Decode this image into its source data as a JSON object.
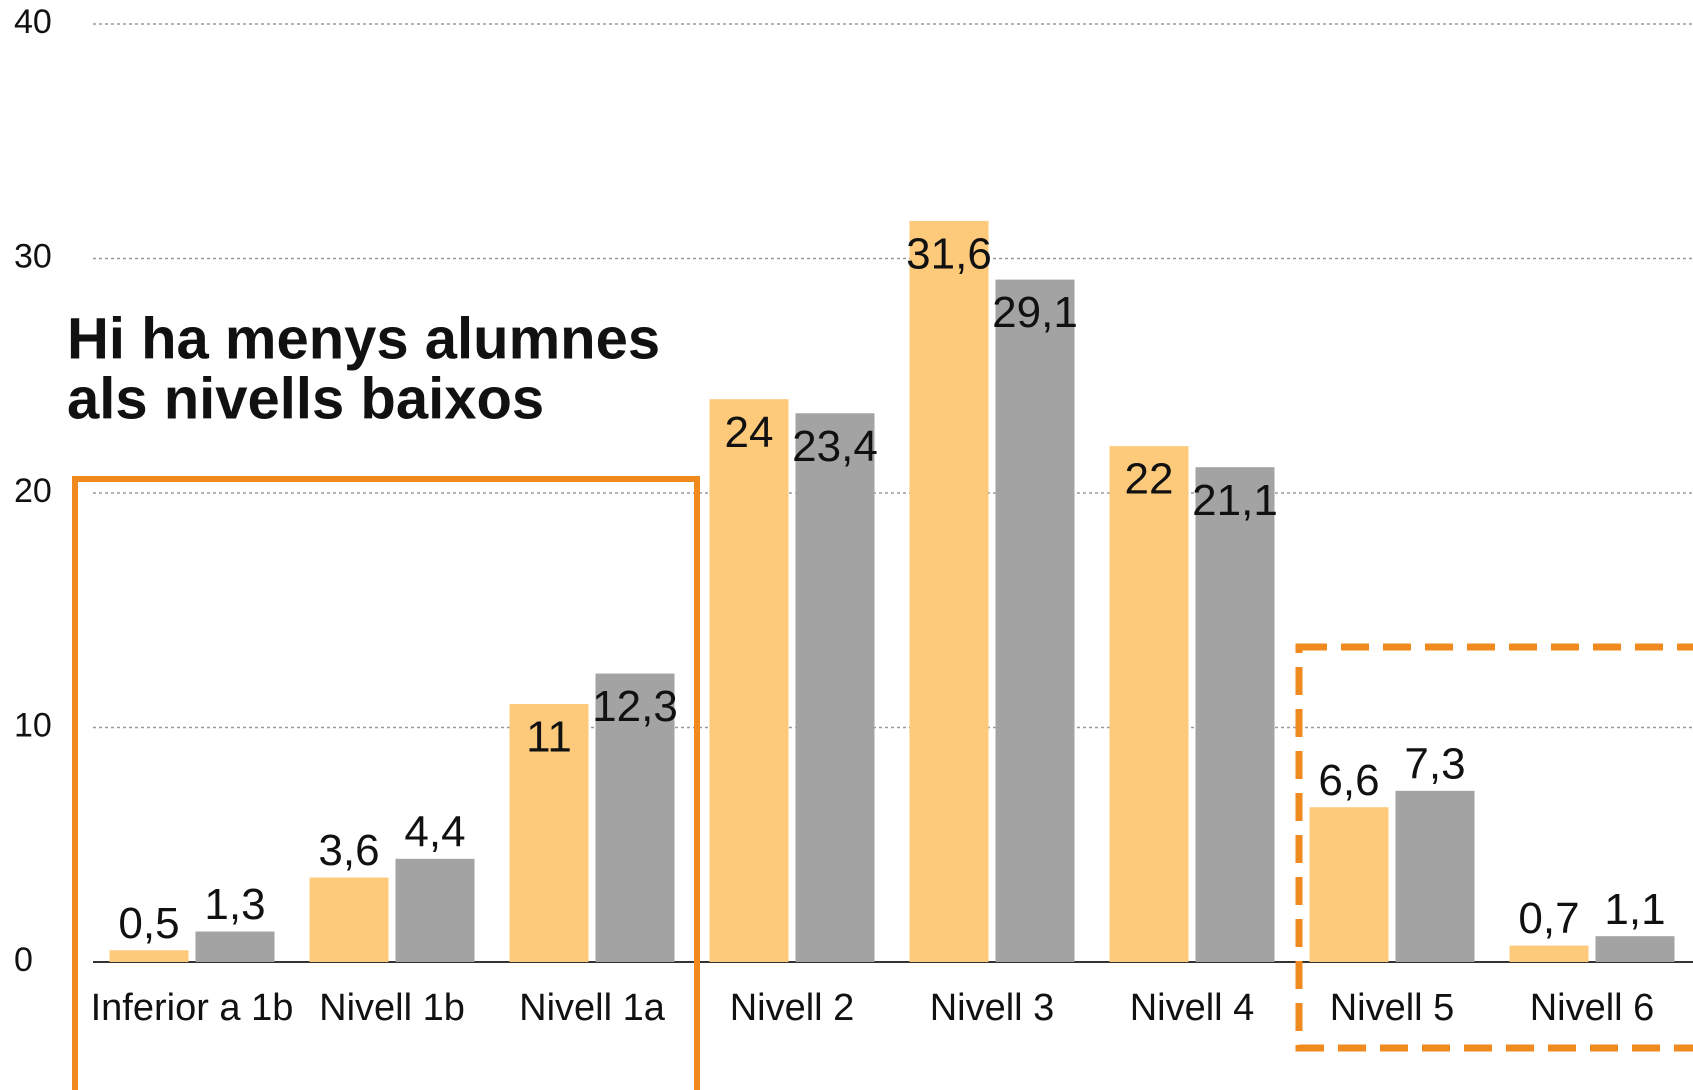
{
  "chart_data": {
    "type": "bar",
    "annotation": [
      "Hi ha menys alumnes",
      "als nivells baixos"
    ],
    "categories": [
      "Inferior a 1b",
      "Nivell 1b",
      "Nivell 1a",
      "Nivell 2",
      "Nivell 3",
      "Nivell 4",
      "Nivell 5",
      "Nivell 6"
    ],
    "series": [
      {
        "color": "#fdc97a",
        "values": [
          0.5,
          3.6,
          11,
          24,
          31.6,
          22,
          6.6,
          0.7
        ],
        "value_labels": [
          "0,5",
          "3,6",
          "11",
          "24",
          "31,6",
          "22",
          "6,6",
          "0,7"
        ]
      },
      {
        "color": "#a3a3a3",
        "values": [
          1.3,
          4.4,
          12.3,
          23.4,
          29.1,
          21.1,
          7.3,
          1.1
        ],
        "value_labels": [
          "1,3",
          "4,4",
          "12,3",
          "23,4",
          "29,1",
          "21,1",
          "7,3",
          "1,1"
        ]
      }
    ],
    "ylim": [
      0,
      40
    ],
    "yticks": [
      0,
      10,
      20,
      30,
      40
    ],
    "grid": true
  }
}
